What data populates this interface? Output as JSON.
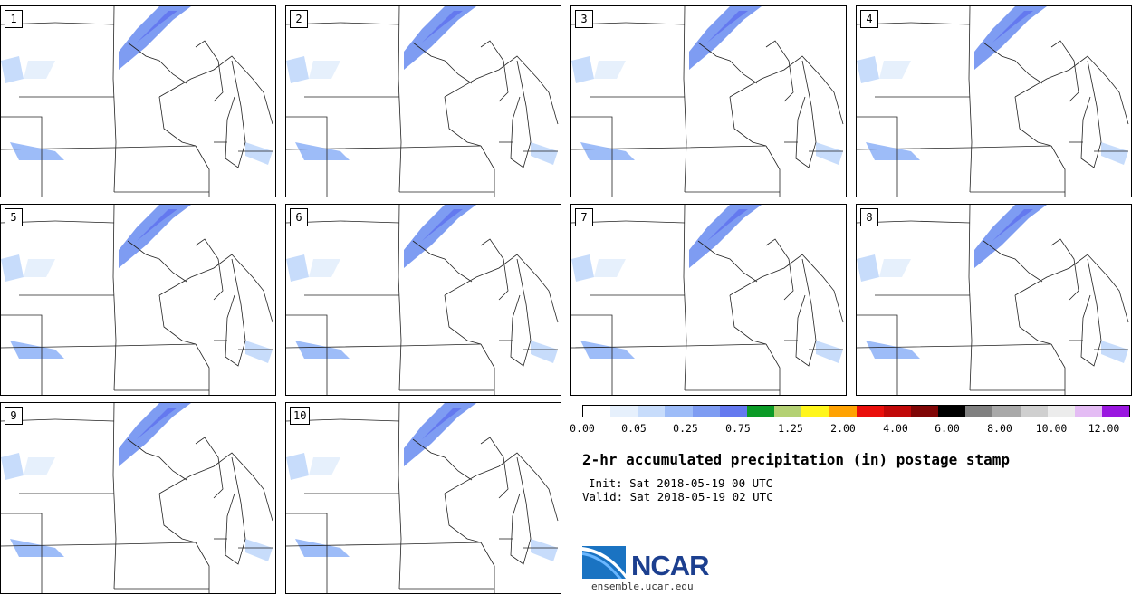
{
  "panels": [
    "1",
    "2",
    "3",
    "4",
    "5",
    "6",
    "7",
    "8",
    "9",
    "10"
  ],
  "colorbar": {
    "colors": [
      "#ffffff",
      "#e6f0fc",
      "#c7dcfb",
      "#9dbcf8",
      "#7e9cf2",
      "#6479ef",
      "#0b9b27",
      "#b4d173",
      "#fff61c",
      "#ffa202",
      "#ea0f0b",
      "#c10808",
      "#800606",
      "#000000",
      "#808080",
      "#a9a9a9",
      "#cfcfcf",
      "#ececec",
      "#e4bcf4",
      "#9a17e0"
    ],
    "labels": [
      "0.00",
      "0.05",
      "0.25",
      "0.75",
      "1.25",
      "2.00",
      "4.00",
      "6.00",
      "8.00",
      "10.00",
      "12.00"
    ]
  },
  "title": "2-hr accumulated precipitation (in) postage stamp",
  "init": "Init: Sat 2018-05-19 00 UTC",
  "valid": "Valid: Sat 2018-05-19 02 UTC",
  "logo": {
    "text": "NCAR",
    "url": "ensemble.ucar.edu"
  }
}
